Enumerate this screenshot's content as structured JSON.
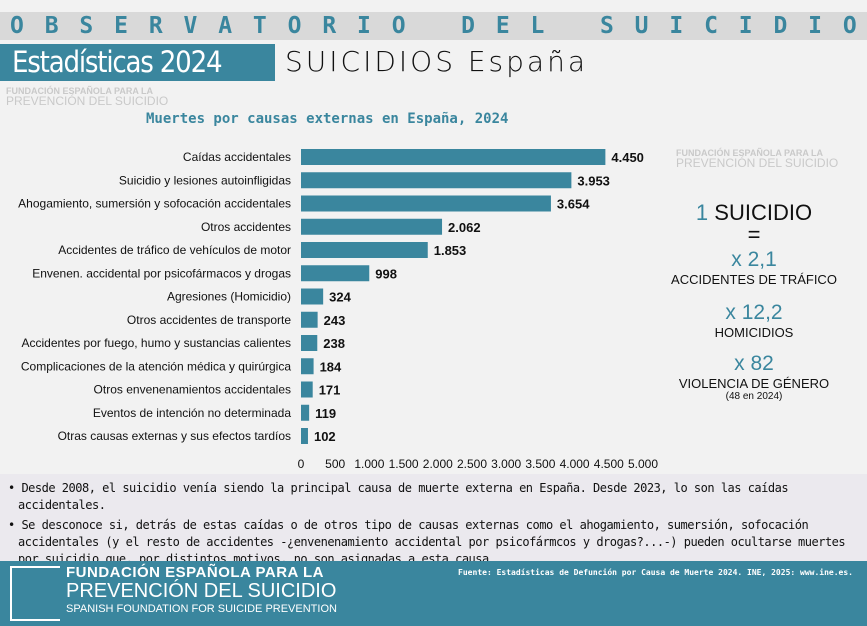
{
  "header": {
    "band": "OBSERVATORIO DEL SUICIDIO",
    "stats_label": "Estadísticas 2024",
    "subtitle": "SUICIDIOS España"
  },
  "watermark": [
    "FUNDACIÓN ESPAÑOLA PARA LA",
    "PREVENCIÓN DEL SUICIDIO",
    "SPANISH FOUNDATION FOR SUICIDE PREVENTION"
  ],
  "chart_data": {
    "type": "bar",
    "orientation": "horizontal",
    "title": "Muertes por causas externas en España, 2024",
    "categories": [
      "Caídas accidentales",
      "Suicidio y lesiones autoinfligidas",
      "Ahogamiento, sumersión y sofocación accidentales",
      "Otros accidentes",
      "Accidentes de tráfico de vehículos de motor",
      "Envenen. accidental por psicofármacos y drogas",
      "Agresiones (Homicidio)",
      "Otros accidentes de transporte",
      "Accidentes por fuego, humo y sustancias calientes",
      "Complicaciones de la atención médica y quirúrgica",
      "Otros envenenamientos accidentales",
      "Eventos de intención no determinada",
      "Otras causas externas y sus efectos tardíos"
    ],
    "values": [
      4450,
      3953,
      3654,
      2062,
      1853,
      998,
      324,
      243,
      238,
      184,
      171,
      119,
      102
    ],
    "value_labels": [
      "4.450",
      "3.953",
      "3.654",
      "2.062",
      "1.853",
      "998",
      "324",
      "243",
      "238",
      "184",
      "171",
      "119",
      "102"
    ],
    "xlim": [
      0,
      5000
    ],
    "ticks": [
      "0",
      "500",
      "1.000",
      "1.500",
      "2.000",
      "2.500",
      "3.000",
      "3.500",
      "4.000",
      "4.500",
      "5.000"
    ],
    "bar_color": "#3a869e",
    "grid": false
  },
  "panel": {
    "one": "1",
    "suicidio": "SUICIDIO",
    "equals": "=",
    "items": [
      {
        "mult": "x 2,1",
        "label": "ACCIDENTES DE TRÁFICO"
      },
      {
        "mult": "x 12,2",
        "label": "HOMICIDIOS"
      },
      {
        "mult": "x 82",
        "label": "VIOLENCIA DE GÉNERO",
        "note": "(48 en 2024)"
      }
    ]
  },
  "notes": [
    "Desde 2008, el suicidio venía siendo la principal causa de muerte externa en España. Desde 2023, lo son las caídas accidentales.",
    "Se desconoce si, detrás de estas caídas o de otros tipo de causas externas como el ahogamiento, sumersión, sofocación accidentales (y el resto de accidentes -¿envenenamiento accidental por psicofármcos y drogas?...-) pueden ocultarse muertes por suicidio que, por distintos motivos, no son asignadas a esta causa."
  ],
  "footer": {
    "line1": "FUNDACIÓN ESPAÑOLA PARA LA",
    "line2": "PREVENCIÓN DEL SUICIDIO",
    "line3": "SPANISH FOUNDATION FOR SUICIDE PREVENTION",
    "source": "Fuente: Estadísticas de Defunción por Causa de Muerte 2024. INE, 2025: www.ine.es."
  },
  "colors": {
    "accent": "#3a869e"
  }
}
